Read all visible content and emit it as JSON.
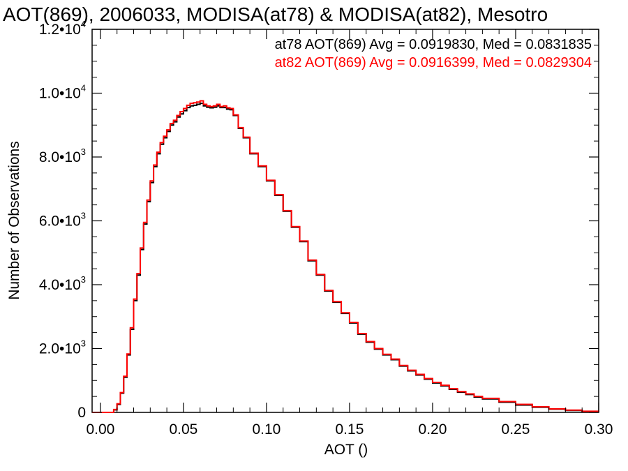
{
  "chart_data": {
    "type": "line",
    "title": "AOT(869), 2006033, MODISA(at78) & MODISA(at82), Mesotro",
    "xlabel": "AOT ()",
    "ylabel": "Number of Observations",
    "xlim": [
      -0.005,
      0.3
    ],
    "ylim": [
      0,
      12000
    ],
    "x_ticks": [
      "0.00",
      "0.05",
      "0.10",
      "0.15",
      "0.20",
      "0.25",
      "0.30"
    ],
    "y_ticks": [
      {
        "value": 0,
        "mantissa": "0",
        "exponent": ""
      },
      {
        "value": 2000,
        "mantissa": "2.0•10",
        "exponent": "3"
      },
      {
        "value": 4000,
        "mantissa": "4.0•10",
        "exponent": "3"
      },
      {
        "value": 6000,
        "mantissa": "6.0•10",
        "exponent": "3"
      },
      {
        "value": 8000,
        "mantissa": "8.0•10",
        "exponent": "3"
      },
      {
        "value": 10000,
        "mantissa": "1.0•10",
        "exponent": "4"
      },
      {
        "value": 12000,
        "mantissa": "1.2•10",
        "exponent": "4"
      }
    ],
    "annotations": [
      "at78 AOT(869) Avg = 0.0919830, Med = 0.0831835",
      "at82 AOT(869) Avg = 0.0916399, Med = 0.0829304"
    ],
    "grid": false,
    "series": [
      {
        "color": "#000000",
        "x": [
          -0.005,
          0.005,
          0.008,
          0.01,
          0.012,
          0.014,
          0.016,
          0.018,
          0.02,
          0.022,
          0.024,
          0.026,
          0.028,
          0.03,
          0.032,
          0.034,
          0.036,
          0.038,
          0.04,
          0.042,
          0.044,
          0.046,
          0.048,
          0.05,
          0.052,
          0.054,
          0.056,
          0.058,
          0.06,
          0.062,
          0.064,
          0.066,
          0.068,
          0.07,
          0.072,
          0.074,
          0.076,
          0.078,
          0.08,
          0.083,
          0.086,
          0.09,
          0.095,
          0.1,
          0.105,
          0.11,
          0.115,
          0.12,
          0.125,
          0.13,
          0.135,
          0.14,
          0.145,
          0.15,
          0.155,
          0.16,
          0.165,
          0.17,
          0.175,
          0.18,
          0.185,
          0.19,
          0.195,
          0.2,
          0.205,
          0.21,
          0.215,
          0.22,
          0.225,
          0.23,
          0.24,
          0.25,
          0.26,
          0.27,
          0.28,
          0.29,
          0.3
        ],
        "y": [
          0,
          0,
          80,
          250,
          600,
          1100,
          1800,
          2600,
          3500,
          4300,
          5100,
          5900,
          6600,
          7200,
          7700,
          8100,
          8400,
          8600,
          8800,
          9000,
          9100,
          9250,
          9350,
          9450,
          9550,
          9600,
          9620,
          9650,
          9680,
          9600,
          9560,
          9540,
          9560,
          9600,
          9550,
          9550,
          9500,
          9480,
          9300,
          8900,
          8600,
          8100,
          7700,
          7250,
          6800,
          6300,
          5800,
          5350,
          4750,
          4300,
          3800,
          3450,
          3100,
          2800,
          2450,
          2200,
          1980,
          1800,
          1650,
          1450,
          1300,
          1170,
          1040,
          920,
          830,
          720,
          630,
          560,
          480,
          420,
          320,
          230,
          160,
          100,
          60,
          30,
          10
        ]
      },
      {
        "color": "#ff0000",
        "x": [
          -0.005,
          0.005,
          0.008,
          0.01,
          0.012,
          0.014,
          0.016,
          0.018,
          0.02,
          0.022,
          0.024,
          0.026,
          0.028,
          0.03,
          0.032,
          0.034,
          0.036,
          0.038,
          0.04,
          0.042,
          0.044,
          0.046,
          0.048,
          0.05,
          0.052,
          0.054,
          0.056,
          0.058,
          0.06,
          0.062,
          0.064,
          0.066,
          0.068,
          0.07,
          0.072,
          0.074,
          0.076,
          0.078,
          0.08,
          0.083,
          0.086,
          0.09,
          0.095,
          0.1,
          0.105,
          0.11,
          0.115,
          0.12,
          0.125,
          0.13,
          0.135,
          0.14,
          0.145,
          0.15,
          0.155,
          0.16,
          0.165,
          0.17,
          0.175,
          0.18,
          0.185,
          0.19,
          0.195,
          0.2,
          0.205,
          0.21,
          0.215,
          0.22,
          0.225,
          0.23,
          0.24,
          0.25,
          0.26,
          0.27,
          0.28,
          0.29,
          0.3
        ],
        "y": [
          0,
          0,
          90,
          270,
          620,
          1130,
          1830,
          2650,
          3550,
          4350,
          5150,
          5950,
          6650,
          7250,
          7750,
          8150,
          8450,
          8650,
          8850,
          9050,
          9150,
          9300,
          9420,
          9520,
          9620,
          9680,
          9700,
          9720,
          9760,
          9650,
          9600,
          9580,
          9600,
          9650,
          9580,
          9600,
          9540,
          9520,
          9320,
          8920,
          8620,
          8120,
          7720,
          7270,
          6820,
          6320,
          5820,
          5370,
          4770,
          4320,
          3820,
          3470,
          3120,
          2820,
          2470,
          2220,
          2000,
          1820,
          1670,
          1470,
          1320,
          1190,
          1060,
          940,
          850,
          740,
          650,
          580,
          500,
          440,
          340,
          250,
          175,
          110,
          70,
          35,
          12
        ]
      }
    ]
  }
}
